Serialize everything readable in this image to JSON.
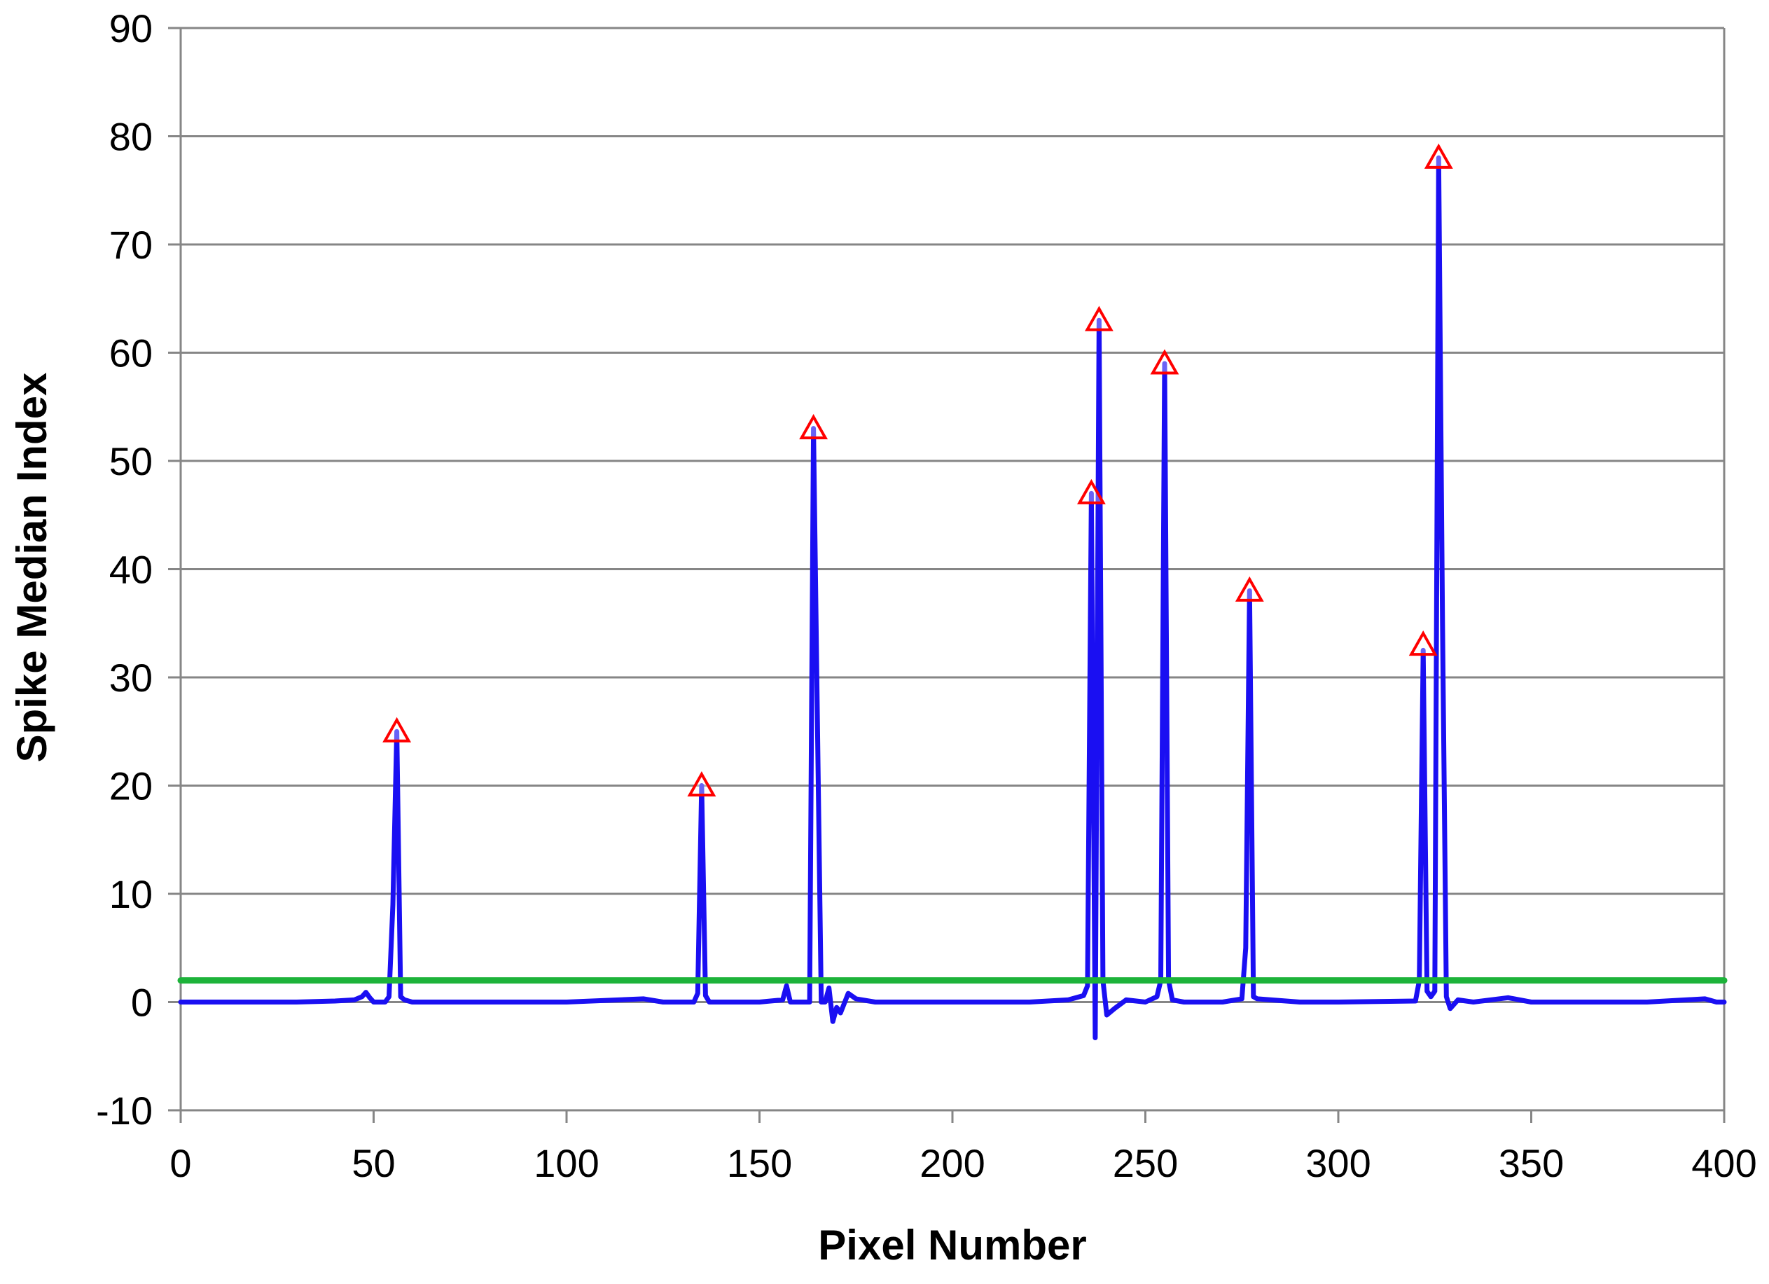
{
  "chart_data": {
    "type": "line",
    "title": "",
    "xlabel": "Pixel Number",
    "ylabel": "Spike Median Index",
    "xlim": [
      0,
      400
    ],
    "ylim": [
      -10,
      90
    ],
    "xticks": [
      0,
      50,
      100,
      150,
      200,
      250,
      300,
      350,
      400
    ],
    "yticks": [
      -10,
      0,
      10,
      20,
      30,
      40,
      50,
      60,
      70,
      80,
      90
    ],
    "x_tick_labels": [
      "0",
      "50",
      "100",
      "150",
      "200",
      "250",
      "300",
      "350",
      "400"
    ],
    "y_tick_labels": [
      "-10",
      "0",
      "10",
      "20",
      "30",
      "40",
      "50",
      "60",
      "70",
      "80",
      "90"
    ],
    "grid": "horizontal",
    "legend": "none",
    "series": [
      {
        "color": "#1a0ff2",
        "style": "line",
        "points": [
          [
            0,
            0
          ],
          [
            10,
            0
          ],
          [
            20,
            0
          ],
          [
            30,
            0
          ],
          [
            40,
            0.1
          ],
          [
            45,
            0.2
          ],
          [
            47,
            0.5
          ],
          [
            48,
            0.9
          ],
          [
            49,
            0.4
          ],
          [
            50,
            0
          ],
          [
            53,
            0
          ],
          [
            54,
            0.5
          ],
          [
            55,
            9
          ],
          [
            56,
            25
          ],
          [
            57,
            0.5
          ],
          [
            58,
            0.2
          ],
          [
            60,
            0
          ],
          [
            80,
            0
          ],
          [
            100,
            0
          ],
          [
            120,
            0.3
          ],
          [
            125,
            0
          ],
          [
            133,
            0
          ],
          [
            134,
            0.8
          ],
          [
            135,
            20
          ],
          [
            136,
            0.6
          ],
          [
            137,
            0
          ],
          [
            150,
            0
          ],
          [
            156,
            0.2
          ],
          [
            157,
            1.5
          ],
          [
            158,
            0
          ],
          [
            163,
            0
          ],
          [
            164,
            53
          ],
          [
            165,
            26
          ],
          [
            166,
            0
          ],
          [
            167,
            0
          ],
          [
            168,
            1.3
          ],
          [
            169,
            -1.8
          ],
          [
            170,
            -0.5
          ],
          [
            171,
            -1
          ],
          [
            173,
            0.8
          ],
          [
            175,
            0.3
          ],
          [
            180,
            0
          ],
          [
            200,
            0
          ],
          [
            220,
            0
          ],
          [
            230,
            0.2
          ],
          [
            234,
            0.6
          ],
          [
            235,
            1.5
          ],
          [
            236,
            47
          ],
          [
            237,
            -3.3
          ],
          [
            238,
            63
          ],
          [
            239,
            2
          ],
          [
            240,
            -1.2
          ],
          [
            242,
            -0.6
          ],
          [
            245,
            0.2
          ],
          [
            250,
            0
          ],
          [
            253,
            0.5
          ],
          [
            254,
            2
          ],
          [
            255,
            59
          ],
          [
            256,
            2
          ],
          [
            257,
            0.2
          ],
          [
            260,
            0
          ],
          [
            270,
            0
          ],
          [
            275,
            0.3
          ],
          [
            276,
            5
          ],
          [
            277,
            38
          ],
          [
            278,
            0.5
          ],
          [
            279,
            0.3
          ],
          [
            290,
            0
          ],
          [
            300,
            0
          ],
          [
            320,
            0.1
          ],
          [
            321,
            2
          ],
          [
            322,
            32.5
          ],
          [
            323,
            1
          ],
          [
            324,
            0.5
          ],
          [
            325,
            1
          ],
          [
            326,
            78
          ],
          [
            327,
            35
          ],
          [
            328,
            0.5
          ],
          [
            329,
            -0.6
          ],
          [
            331,
            0.2
          ],
          [
            335,
            0
          ],
          [
            344,
            0.4
          ],
          [
            350,
            0
          ],
          [
            360,
            0
          ],
          [
            380,
            0
          ],
          [
            395,
            0.3
          ],
          [
            398,
            0
          ],
          [
            400,
            0
          ]
        ]
      },
      {
        "color": "#1db33a",
        "style": "line",
        "points": [
          [
            0,
            2
          ],
          [
            400,
            2
          ]
        ]
      }
    ],
    "markers": {
      "shape": "triangle",
      "stroke": "#ff0000",
      "fill": "#ffffff",
      "points": [
        [
          56,
          25
        ],
        [
          135,
          20
        ],
        [
          164,
          53
        ],
        [
          236,
          47
        ],
        [
          238,
          63
        ],
        [
          255,
          59
        ],
        [
          277,
          38
        ],
        [
          322,
          33
        ],
        [
          326,
          78
        ]
      ]
    }
  }
}
